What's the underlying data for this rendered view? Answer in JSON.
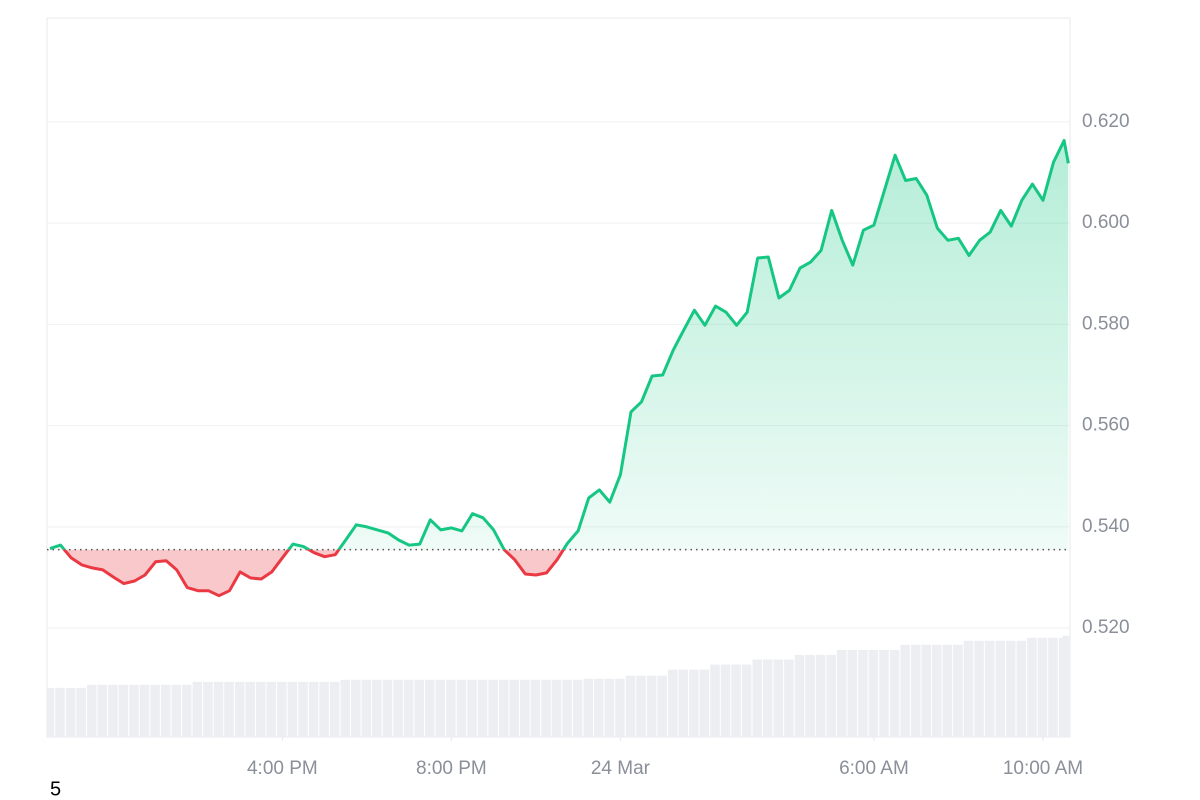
{
  "chart_data": {
    "type": "price-line",
    "corner_text": "5",
    "color_up": "#16c784",
    "color_down": "#ea3943",
    "volume_color": "#eceef2",
    "baseline": 0.5355,
    "grid": true,
    "xlim": [
      10.43,
      34.64
    ],
    "xticks": [
      {
        "value": 16,
        "label": "4:00 PM"
      },
      {
        "value": 20,
        "label": "8:00 PM"
      },
      {
        "value": 24,
        "label": "24 Mar"
      },
      {
        "value": 30,
        "label": "6:00 AM"
      },
      {
        "value": 34,
        "label": "10:00 AM"
      }
    ],
    "ylim": [
      0.4985,
      0.6405
    ],
    "yticks": [
      {
        "value": 0.52,
        "label": "0.520"
      },
      {
        "value": 0.54,
        "label": "0.540"
      },
      {
        "value": 0.56,
        "label": "0.560"
      },
      {
        "value": 0.58,
        "label": "0.580"
      },
      {
        "value": 0.6,
        "label": "0.600"
      },
      {
        "value": 0.62,
        "label": "0.620"
      }
    ],
    "x": [
      10.5,
      10.75,
      11,
      11.25,
      11.5,
      11.75,
      12,
      12.25,
      12.5,
      12.75,
      13,
      13.25,
      13.5,
      13.75,
      14,
      14.25,
      14.5,
      14.75,
      15,
      15.25,
      15.5,
      15.75,
      16,
      16.25,
      16.5,
      16.75,
      17,
      17.25,
      17.5,
      17.75,
      18,
      18.25,
      18.5,
      18.75,
      19,
      19.25,
      19.5,
      19.75,
      20,
      20.25,
      20.5,
      20.75,
      21,
      21.25,
      21.5,
      21.75,
      22,
      22.25,
      22.5,
      22.75,
      23,
      23.25,
      23.5,
      23.75,
      24,
      24.25,
      24.5,
      24.75,
      25,
      25.25,
      25.5,
      25.75,
      26,
      26.25,
      26.5,
      26.75,
      27,
      27.25,
      27.5,
      27.75,
      28,
      28.25,
      28.5,
      28.75,
      29,
      29.25,
      29.5,
      29.75,
      30,
      30.25,
      30.5,
      30.75,
      31,
      31.25,
      31.5,
      31.75,
      32,
      32.25,
      32.5,
      32.75,
      33,
      33.25,
      33.5,
      33.75,
      34,
      34.25,
      34.5,
      34.6
    ],
    "values": [
      0.5357,
      0.5364,
      0.5339,
      0.5325,
      0.5319,
      0.5315,
      0.5301,
      0.5288,
      0.5293,
      0.5305,
      0.5331,
      0.5333,
      0.5315,
      0.528,
      0.5274,
      0.5274,
      0.5264,
      0.5274,
      0.5311,
      0.5299,
      0.5297,
      0.5311,
      0.5339,
      0.5366,
      0.5361,
      0.5349,
      0.5341,
      0.5345,
      0.5374,
      0.5404,
      0.54,
      0.5394,
      0.5388,
      0.5374,
      0.5364,
      0.5366,
      0.5414,
      0.5394,
      0.5398,
      0.5392,
      0.5426,
      0.5418,
      0.5394,
      0.5355,
      0.5335,
      0.5307,
      0.5305,
      0.5309,
      0.5335,
      0.5368,
      0.5392,
      0.5457,
      0.5473,
      0.5449,
      0.5503,
      0.5627,
      0.5647,
      0.5698,
      0.57,
      0.5749,
      0.5789,
      0.5828,
      0.5798,
      0.5836,
      0.5824,
      0.5798,
      0.5824,
      0.5931,
      0.5933,
      0.5852,
      0.5867,
      0.5911,
      0.5923,
      0.5946,
      0.6025,
      0.5966,
      0.5917,
      0.5986,
      0.5996,
      0.6065,
      0.6134,
      0.6084,
      0.6088,
      0.6055,
      0.599,
      0.5966,
      0.597,
      0.5936,
      0.5966,
      0.5982,
      0.6025,
      0.5994,
      0.6045,
      0.6077,
      0.6045,
      0.612,
      0.6163,
      0.6118
    ],
    "volume": [
      0.5082,
      0.5082,
      0.5082,
      0.5082,
      0.5088,
      0.5088,
      0.5088,
      0.5088,
      0.5088,
      0.5088,
      0.5088,
      0.5088,
      0.5088,
      0.5088,
      0.5094,
      0.5094,
      0.5094,
      0.5094,
      0.5094,
      0.5094,
      0.5094,
      0.5094,
      0.5094,
      0.5094,
      0.5094,
      0.5094,
      0.5094,
      0.5094,
      0.5098,
      0.5098,
      0.5098,
      0.5098,
      0.5098,
      0.5098,
      0.5098,
      0.5098,
      0.5098,
      0.5098,
      0.5098,
      0.5098,
      0.5098,
      0.5098,
      0.5098,
      0.5098,
      0.5098,
      0.5098,
      0.5098,
      0.5098,
      0.5098,
      0.5098,
      0.5098,
      0.51,
      0.51,
      0.51,
      0.51,
      0.5106,
      0.5106,
      0.5106,
      0.5106,
      0.5118,
      0.5118,
      0.5118,
      0.5118,
      0.5128,
      0.5128,
      0.5128,
      0.5128,
      0.5138,
      0.5138,
      0.5138,
      0.5138,
      0.5147,
      0.5147,
      0.5147,
      0.5147,
      0.5157,
      0.5157,
      0.5157,
      0.5157,
      0.5157,
      0.5157,
      0.5167,
      0.5167,
      0.5167,
      0.5167,
      0.5167,
      0.5167,
      0.5175,
      0.5175,
      0.5175,
      0.5175,
      0.5175,
      0.5175,
      0.5181,
      0.5181,
      0.5181,
      0.5181,
      0.5185
    ]
  }
}
